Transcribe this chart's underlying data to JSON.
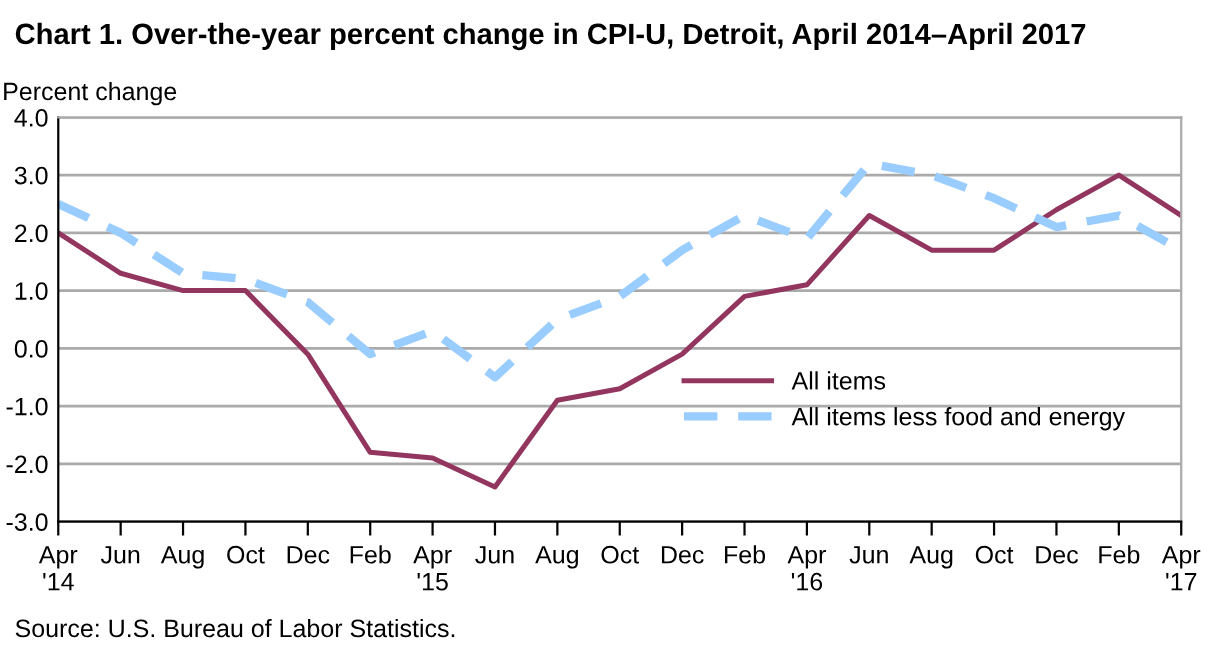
{
  "chart_data": {
    "type": "line",
    "title": "Chart 1. Over-the-year percent change in CPI-U, Detroit, April 2014–April 2017",
    "ylabel": "Percent change",
    "categories": [
      "Apr\n'14",
      "Jun",
      "Aug",
      "Oct",
      "Dec",
      "Feb",
      "Apr\n'15",
      "Jun",
      "Aug",
      "Oct",
      "Dec",
      "Feb",
      "Apr\n'16",
      "Jun",
      "Aug",
      "Oct",
      "Dec",
      "Feb",
      "Apr\n'17"
    ],
    "series": [
      {
        "name": "All items",
        "color": "#93365f",
        "line_style": "solid",
        "values": [
          2.0,
          1.3,
          1.0,
          1.0,
          -0.1,
          -1.8,
          -1.9,
          -2.4,
          -0.9,
          -0.7,
          -0.1,
          0.9,
          1.1,
          2.3,
          1.7,
          1.7,
          2.4,
          3.0,
          2.3
        ]
      },
      {
        "name": "All items less food and energy",
        "color": "#99ccff",
        "line_style": "dashed",
        "values": [
          2.5,
          2.0,
          1.3,
          1.2,
          0.8,
          -0.1,
          0.3,
          -0.5,
          0.5,
          0.9,
          1.7,
          2.3,
          1.9,
          3.2,
          3.0,
          2.6,
          2.1,
          2.3,
          1.7
        ]
      }
    ],
    "ylim": [
      -3.0,
      4.0
    ],
    "yticks": [
      {
        "value": -3.0,
        "label": "-3.0"
      },
      {
        "value": -2.0,
        "label": "-2.0"
      },
      {
        "value": -1.0,
        "label": "-1.0"
      },
      {
        "value": 0.0,
        "label": "0.0"
      },
      {
        "value": 1.0,
        "label": "1.0"
      },
      {
        "value": 2.0,
        "label": "2.0"
      },
      {
        "value": 3.0,
        "label": "3.0"
      },
      {
        "value": 4.0,
        "label": "4.0"
      }
    ],
    "grid": "y",
    "legend": "lower right",
    "annotations": [
      "Source: U.S. Bureau of Labor Statistics."
    ]
  }
}
